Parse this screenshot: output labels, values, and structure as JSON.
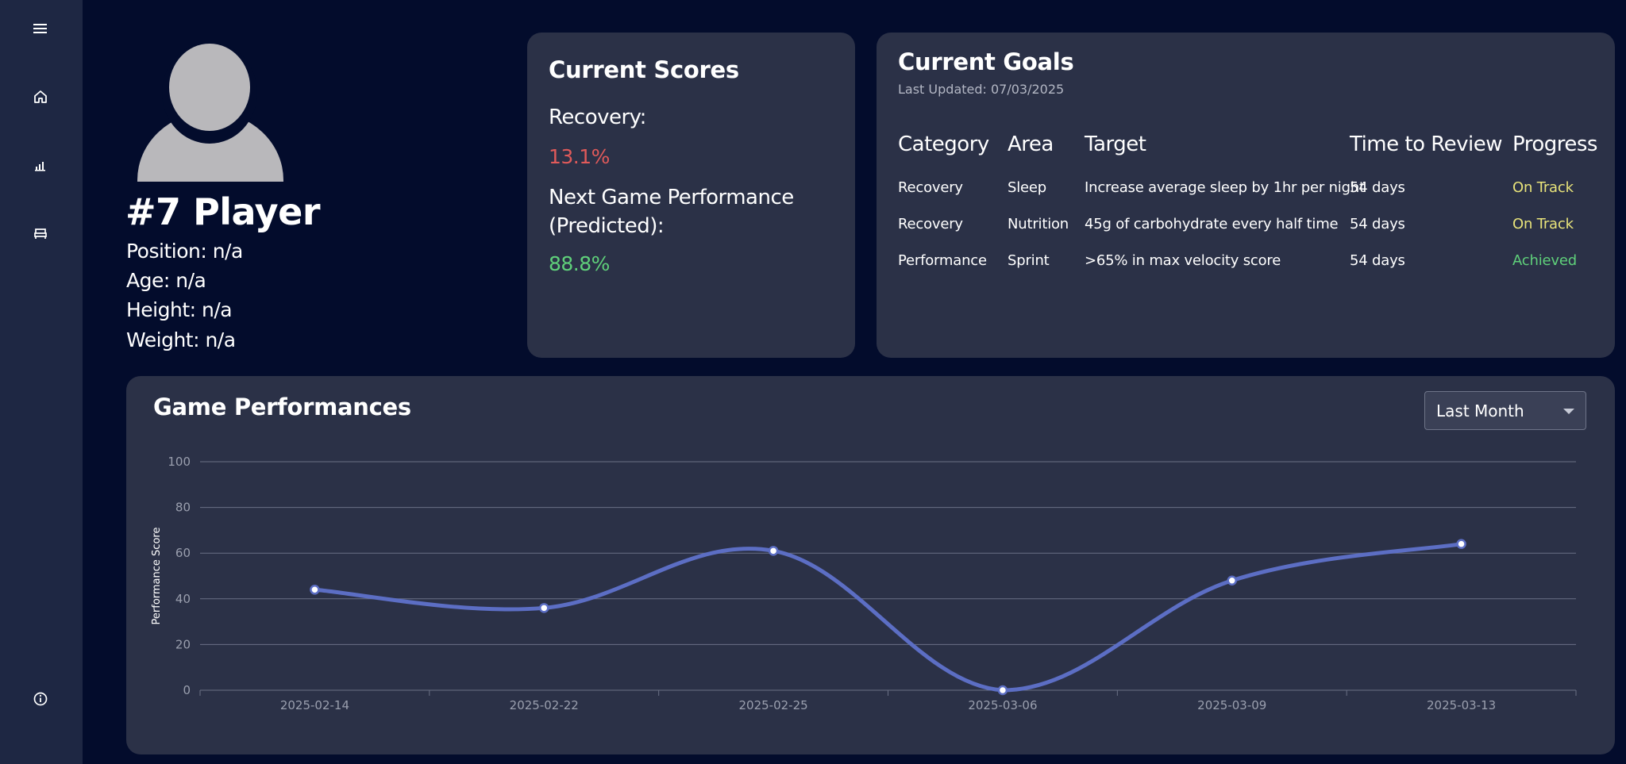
{
  "sidebar": {
    "icons": [
      "menu-icon",
      "home-icon",
      "bar-chart-icon",
      "bed-icon",
      "info-icon"
    ]
  },
  "player": {
    "name": "#7 Player",
    "position": "Position: n/a",
    "age": "Age: n/a",
    "height": "Height: n/a",
    "weight": "Weight: n/a"
  },
  "scores": {
    "title": "Current Scores",
    "recovery_label": "Recovery:",
    "recovery_value": "13.1%",
    "next_game_label_line1": "Next Game Performance",
    "next_game_label_line2": "(Predicted):",
    "next_game_value": "88.8%"
  },
  "goals": {
    "title": "Current Goals",
    "last_updated": "Last Updated: 07/03/2025",
    "headers": [
      "Category",
      "Area",
      "Target",
      "Time to Review",
      "Progress"
    ],
    "rows": [
      {
        "category": "Recovery",
        "area": "Sleep",
        "target": "Increase average sleep by 1hr per night",
        "time": "54 days",
        "progress": "On Track"
      },
      {
        "category": "Recovery",
        "area": "Nutrition",
        "target": "45g of carbohydrate every half time",
        "time": "54 days",
        "progress": "On Track"
      },
      {
        "category": "Performance",
        "area": "Sprint",
        "target": ">65% in max velocity score",
        "time": "54 days",
        "progress": "Achieved"
      }
    ]
  },
  "performances": {
    "title": "Game Performances",
    "range_selected": "Last Month"
  },
  "chart_data": {
    "type": "line",
    "title": "Game Performances",
    "ylabel": "Performance Score",
    "xlabel": "",
    "categories": [
      "2025-02-14",
      "2025-02-22",
      "2025-02-25",
      "2025-03-06",
      "2025-03-09",
      "2025-03-13"
    ],
    "series": [
      {
        "values": [
          44,
          36,
          61,
          0,
          48,
          64
        ]
      }
    ],
    "ylim": [
      0,
      100
    ],
    "yticks": [
      0,
      20,
      40,
      60,
      80,
      100
    ],
    "grid": true,
    "smooth": true
  },
  "colors": {
    "background": "#030c2c",
    "sidebar": "#1e2743",
    "card": "#2b3147",
    "line": "#5c6ec4",
    "negative": "#e05a5a",
    "positive": "#5fd07a",
    "on_track": "#e8e37a",
    "achieved": "#5fd07a"
  }
}
